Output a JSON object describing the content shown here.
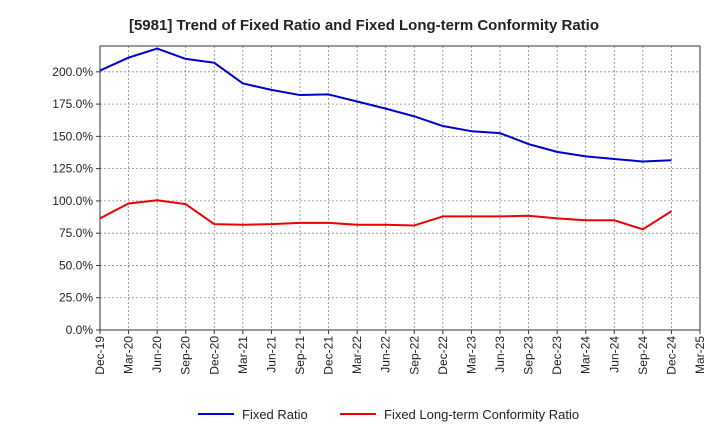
{
  "chart_data": {
    "type": "line",
    "title": "[5981]  Trend of Fixed Ratio and Fixed Long-term Conformity Ratio",
    "xlabel": "",
    "ylabel": "",
    "ylim": [
      0,
      220
    ],
    "y_ticks": [
      0,
      25,
      50,
      75,
      100,
      125,
      150,
      175,
      200
    ],
    "y_tick_labels": [
      "0.0%",
      "25.0%",
      "50.0%",
      "75.0%",
      "100.0%",
      "125.0%",
      "150.0%",
      "175.0%",
      "200.0%"
    ],
    "categories": [
      "Dec-19",
      "Mar-20",
      "Jun-20",
      "Sep-20",
      "Dec-20",
      "Mar-21",
      "Jun-21",
      "Sep-21",
      "Dec-21",
      "Mar-22",
      "Jun-22",
      "Sep-22",
      "Dec-22",
      "Mar-23",
      "Jun-23",
      "Sep-23",
      "Dec-23",
      "Mar-24",
      "Jun-24",
      "Sep-24",
      "Dec-24",
      "Mar-25"
    ],
    "grid": true,
    "legend_position": "bottom",
    "series": [
      {
        "name": "Fixed Ratio",
        "color": "#0000cc",
        "values": [
          201,
          211,
          218,
          210,
          207,
          191,
          186,
          182,
          182.5,
          177,
          171.5,
          165.5,
          158,
          154,
          152.5,
          144,
          138,
          134.5,
          132.5,
          130.5,
          131.5,
          null
        ]
      },
      {
        "name": "Fixed Long-term Conformity Ratio",
        "color": "#ee0000",
        "values": [
          86.5,
          98,
          100.5,
          97.5,
          82,
          81.5,
          82,
          83,
          83,
          81.5,
          81.5,
          81,
          88,
          88,
          88,
          88.5,
          86.5,
          85,
          85,
          78,
          92,
          null
        ]
      }
    ]
  }
}
